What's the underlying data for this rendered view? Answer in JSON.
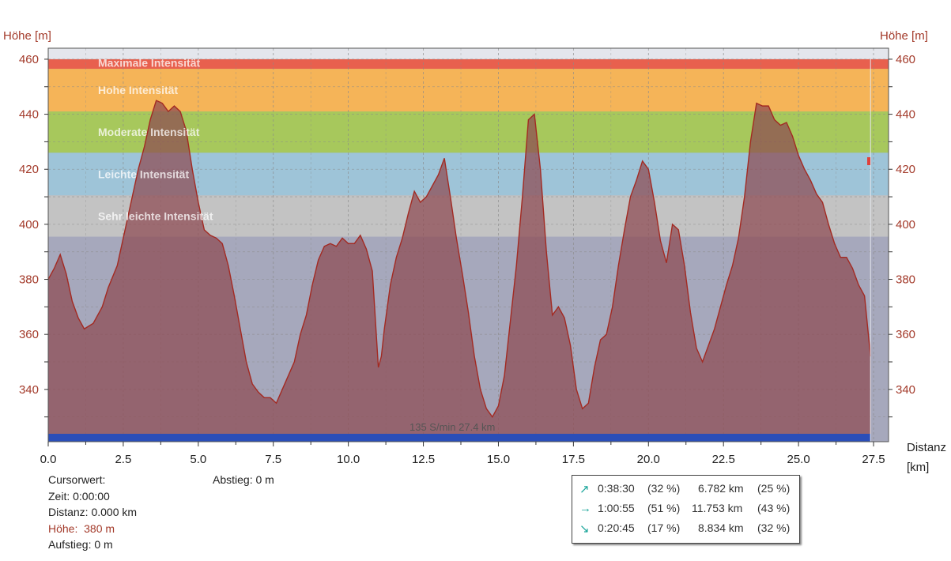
{
  "chart_data": {
    "type": "area",
    "ylabel_left": "Höhe [m]",
    "ylabel_right": "Höhe [m]",
    "xlabel": "Distanz",
    "xunit": "[km]",
    "xlim": [
      0,
      28
    ],
    "ylim": [
      321,
      464
    ],
    "x_ticks": [
      "0.0",
      "2.5",
      "5.0",
      "7.5",
      "10.0",
      "12.5",
      "15.0",
      "17.5",
      "20.0",
      "22.5",
      "25.0",
      "27.5"
    ],
    "y_ticks": [
      "340",
      "360",
      "380",
      "400",
      "420",
      "440",
      "460"
    ],
    "zones": [
      {
        "label": "Maximale Intensität",
        "from": 456.5,
        "to": 460,
        "color": "#e8604e"
      },
      {
        "label": "Hohe Intensität",
        "from": 441,
        "to": 456.5,
        "color": "#f5b458"
      },
      {
        "label": "Moderate Intensität",
        "from": 426,
        "to": 441,
        "color": "#a7c85c"
      },
      {
        "label": "Leichte Intensität",
        "from": 410.5,
        "to": 426,
        "color": "#9ec4d8"
      },
      {
        "label": "Sehr leichte Intensität",
        "from": 395.5,
        "to": 410.5,
        "color": "#c3c3c3"
      }
    ],
    "plot_background": "#a6a8bc",
    "fill_color": "#8d4a52",
    "line_color": "#a32a22",
    "series": [
      {
        "x": [
          0,
          0.2,
          0.4,
          0.6,
          0.8,
          1.0,
          1.2,
          1.5,
          1.8,
          2.0,
          2.3,
          2.5,
          2.8,
          3.0,
          3.2,
          3.4,
          3.6,
          3.8,
          4.0,
          4.2,
          4.4,
          4.6,
          4.8,
          5.0,
          5.2,
          5.4,
          5.6,
          5.8,
          6.0,
          6.2,
          6.4,
          6.6,
          6.8,
          7.0,
          7.2,
          7.4,
          7.6,
          7.8,
          8.0,
          8.2,
          8.4,
          8.6,
          8.8,
          9.0,
          9.2,
          9.4,
          9.6,
          9.8,
          10.0,
          10.2,
          10.4,
          10.6,
          10.8,
          11.0,
          11.1,
          11.2,
          11.4,
          11.6,
          11.8,
          12.0,
          12.2,
          12.4,
          12.6,
          12.8,
          13.0,
          13.2,
          13.4,
          13.6,
          13.8,
          14.0,
          14.2,
          14.4,
          14.6,
          14.8,
          15.0,
          15.2,
          15.4,
          15.6,
          15.8,
          16.0,
          16.2,
          16.4,
          16.6,
          16.8,
          17.0,
          17.2,
          17.4,
          17.6,
          17.8,
          18.0,
          18.2,
          18.4,
          18.6,
          18.8,
          19.0,
          19.2,
          19.4,
          19.6,
          19.8,
          20.0,
          20.2,
          20.4,
          20.6,
          20.8,
          21.0,
          21.2,
          21.4,
          21.6,
          21.8,
          22.0,
          22.2,
          22.4,
          22.6,
          22.8,
          23.0,
          23.2,
          23.4,
          23.6,
          23.8,
          24.0,
          24.2,
          24.4,
          24.6,
          24.8,
          25.0,
          25.2,
          25.4,
          25.6,
          25.8,
          26.0,
          26.2,
          26.4,
          26.6,
          26.8,
          27.0,
          27.2,
          27.4
        ],
        "y": [
          380,
          384,
          389,
          382,
          372,
          366,
          362,
          364,
          370,
          377,
          385,
          395,
          410,
          420,
          428,
          438,
          445,
          444,
          441,
          443,
          441,
          434,
          420,
          408,
          398,
          396,
          395,
          393,
          385,
          374,
          362,
          350,
          342,
          339,
          337,
          337,
          335,
          340,
          345,
          350,
          360,
          367,
          378,
          387,
          392,
          393,
          392,
          395,
          393,
          393,
          396,
          391,
          383,
          348,
          352,
          362,
          378,
          388,
          395,
          404,
          412,
          408,
          410,
          414,
          418,
          424,
          410,
          395,
          382,
          368,
          352,
          340,
          333,
          330,
          334,
          345,
          365,
          385,
          410,
          438,
          440,
          420,
          390,
          367,
          370,
          366,
          356,
          340,
          333,
          335,
          348,
          358,
          360,
          370,
          385,
          398,
          410,
          416,
          423,
          420,
          408,
          394,
          386,
          400,
          398,
          385,
          368,
          355,
          350,
          356,
          362,
          370,
          378,
          385,
          395,
          410,
          430,
          444,
          443,
          443,
          438,
          436,
          437,
          432,
          425,
          420,
          416,
          411,
          408,
          400,
          393,
          388,
          388,
          384,
          378,
          374,
          352
        ]
      }
    ],
    "marker_text": "135 S/min 27.4 km",
    "bottom_bar_color": "#2a4eb8"
  },
  "cursor": {
    "title": "Cursorwert:",
    "time_label": "Zeit:",
    "time_value": "0:00:00",
    "dist_label": "Distanz:",
    "dist_value": "0.000 km",
    "height_label": "Höhe:",
    "height_value": "380 m",
    "ascent_label": "Aufstieg:",
    "ascent_value": "0 m",
    "descent_label": "Abstieg:",
    "descent_value": "0 m"
  },
  "summary": {
    "rows": [
      {
        "icon": "arrow-up-right-icon",
        "glyph": "↗",
        "time": "0:38:30",
        "time_pct": "(32 %)",
        "dist": "6.782 km",
        "dist_pct": "(25 %)"
      },
      {
        "icon": "arrow-right-icon",
        "glyph": "→",
        "time": "1:00:55",
        "time_pct": "(51 %)",
        "dist": "11.753 km",
        "dist_pct": "(43 %)"
      },
      {
        "icon": "arrow-down-right-icon",
        "glyph": "↘",
        "time": "0:20:45",
        "time_pct": "(17 %)",
        "dist": "8.834 km",
        "dist_pct": "(32 %)"
      }
    ]
  }
}
